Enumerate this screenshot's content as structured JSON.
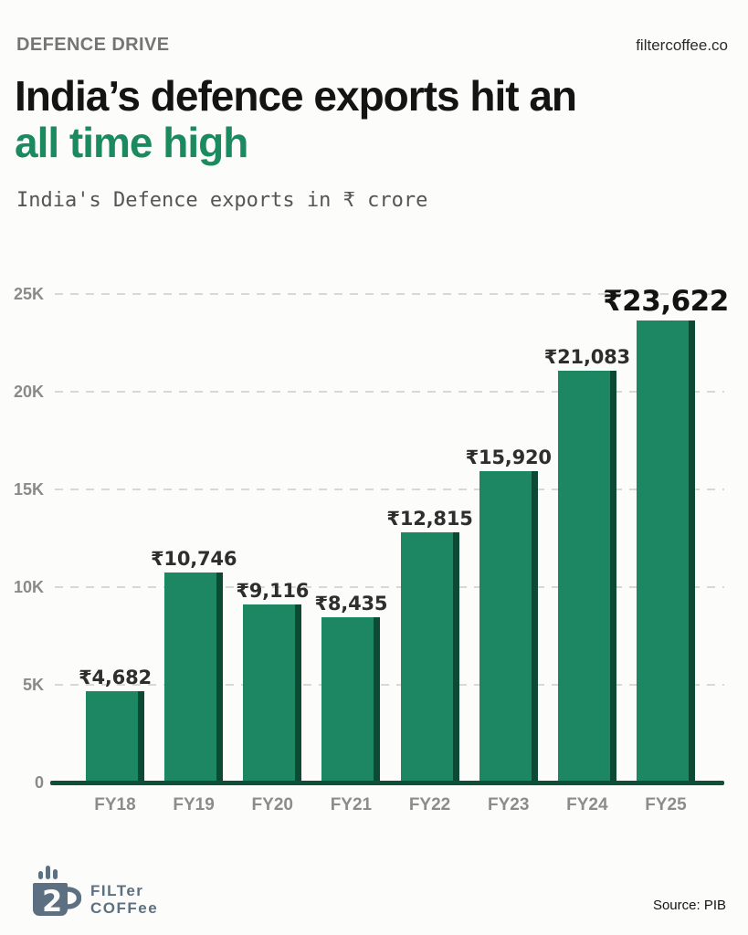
{
  "header": {
    "kicker": "DEFENCE DRIVE",
    "site": "filtercoffee.co",
    "title_line1": "India’s defence exports hit an",
    "title_line2": "all time high",
    "subtitle": "India's Defence exports in ₹ crore"
  },
  "chart_data": {
    "type": "bar",
    "title": "India's defence exports hit an all time high",
    "subtitle": "India's Defence exports in ₹ crore",
    "categories": [
      "FY18",
      "FY19",
      "FY20",
      "FY21",
      "FY22",
      "FY23",
      "FY24",
      "FY25"
    ],
    "values": [
      4682,
      10746,
      9116,
      8435,
      12815,
      15920,
      21083,
      23622
    ],
    "value_labels": [
      "₹4,682",
      "₹10,746",
      "₹9,116",
      "₹8,435",
      "₹12,815",
      "₹15,920",
      "₹21,083",
      "₹23,622"
    ],
    "highlight_index": 7,
    "xlabel": "",
    "ylabel": "",
    "ylim": [
      0,
      25000
    ],
    "yticks": [
      0,
      5000,
      10000,
      15000,
      20000,
      25000
    ],
    "ytick_labels": [
      "0",
      "5K",
      "10K",
      "15K",
      "20K",
      "25K"
    ],
    "grid": "horizontal-dashed",
    "legend": "none",
    "bar_color": "#1d8662",
    "bar_edge_color": "#0c4a36",
    "axis_color": "#0d4f3a"
  },
  "footer": {
    "logo_line1": "FILTer",
    "logo_line2": "COFFee",
    "source": "Source: PIB"
  },
  "colors": {
    "accent_green": "#1b8a5e",
    "title_dark": "#141414",
    "kicker_gray": "#757572",
    "tick_gray": "#8a8a88",
    "logo_slate": "#5d7082",
    "background": "#fcfcfa"
  }
}
